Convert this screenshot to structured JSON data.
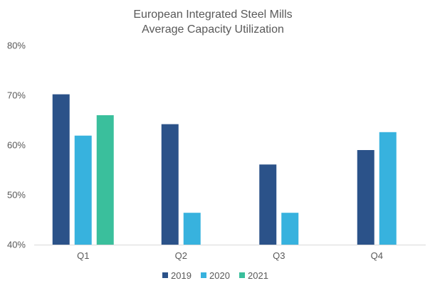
{
  "chart_data": {
    "type": "bar",
    "title_lines": [
      "European Integrated Steel Mills",
      "Average Capacity Utilization"
    ],
    "categories": [
      "Q1",
      "Q2",
      "Q3",
      "Q4"
    ],
    "series": [
      {
        "name": "2019",
        "color": "#2B5289",
        "values": [
          70.2,
          64.2,
          56.1,
          59.0
        ]
      },
      {
        "name": "2020",
        "color": "#37B2DE",
        "values": [
          61.9,
          46.4,
          46.4,
          62.6
        ]
      },
      {
        "name": "2021",
        "color": "#3ABF9C",
        "values": [
          66.0,
          null,
          null,
          null
        ]
      }
    ],
    "ylim": [
      40,
      80
    ],
    "yticks": [
      40,
      50,
      60,
      70,
      80
    ],
    "ytick_labels": [
      "40%",
      "50%",
      "60%",
      "70%",
      "80%"
    ],
    "grid": false,
    "legend_position": "bottom"
  }
}
